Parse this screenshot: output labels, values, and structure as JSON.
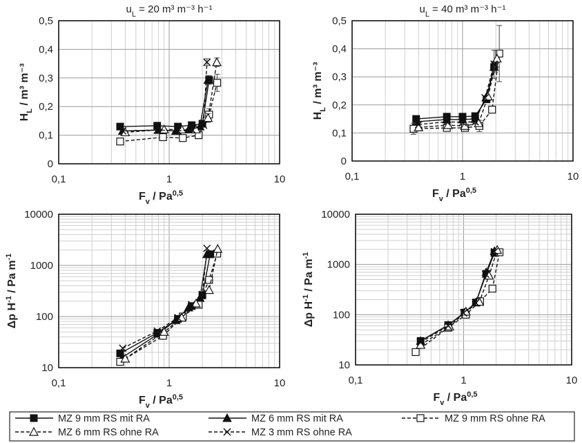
{
  "series_styles": [
    {
      "marker": "square-filled",
      "dash": "solid"
    },
    {
      "marker": "triangle-filled",
      "dash": "solid"
    },
    {
      "marker": "square-open",
      "dash": "dashed"
    },
    {
      "marker": "triangle-open",
      "dash": "dashed"
    },
    {
      "marker": "x",
      "dash": "dashed"
    }
  ],
  "chart_data": [
    {
      "type": "scatter",
      "panel": "top-left",
      "title": {
        "main": "u",
        "sub": "L",
        "rest": " = 20 m³ m⁻³ h⁻¹"
      },
      "xlabel": {
        "main": "F",
        "sub": "v",
        "rest": " / Pa",
        "sup": "0,5"
      },
      "ylabel": {
        "main": "H",
        "sub": "L",
        "rest": " / m³ m⁻³"
      },
      "xscale": "log",
      "xlim": [
        0.1,
        10
      ],
      "xticks": [
        "0,1",
        "1",
        "10"
      ],
      "yscale": "linear",
      "ylim": [
        0,
        0.5
      ],
      "yticks": [
        "0",
        "0,1",
        "0,2",
        "0,3",
        "0,4",
        "0,5"
      ],
      "series": [
        {
          "name": "MZ 9 mm RS mit RA",
          "x": [
            0.36,
            0.78,
            1.2,
            1.6,
            2.0,
            2.3
          ],
          "y": [
            0.13,
            0.133,
            0.13,
            0.135,
            0.14,
            0.293
          ],
          "err": [
            0,
            0,
            0,
            0,
            0,
            0.015
          ]
        },
        {
          "name": "MZ 6 mm RS mit RA",
          "x": [
            0.38,
            0.8,
            1.15,
            1.5,
            1.9,
            2.25
          ],
          "y": [
            0.115,
            0.118,
            0.115,
            0.12,
            0.13,
            0.293
          ],
          "err": [
            0,
            0,
            0,
            0,
            0,
            0.015
          ]
        },
        {
          "name": "MZ 9 mm RS ohne RA",
          "x": [
            0.36,
            0.88,
            1.33,
            1.85,
            2.3,
            2.72
          ],
          "y": [
            0.078,
            0.093,
            0.09,
            0.1,
            0.172,
            0.283
          ],
          "err": [
            0,
            0,
            0,
            0,
            0.02,
            0.03
          ]
        },
        {
          "name": "MZ 6 mm RS ohne RA",
          "x": [
            0.4,
            0.9,
            1.3,
            1.75,
            2.25,
            2.7
          ],
          "y": [
            0.11,
            0.12,
            0.12,
            0.12,
            0.16,
            0.355
          ],
          "err": [
            0,
            0,
            0,
            0,
            0.015,
            0.015
          ]
        },
        {
          "name": "MZ 3 mm RS ohne RA",
          "x": [
            0.38,
            0.78,
            1.2,
            1.6,
            2.05,
            2.2
          ],
          "y": [
            0.115,
            0.118,
            0.115,
            0.12,
            0.135,
            0.355
          ],
          "err": [
            0,
            0,
            0,
            0,
            0,
            0.012
          ]
        }
      ]
    },
    {
      "type": "scatter",
      "panel": "top-right",
      "title": {
        "main": "u",
        "sub": "L",
        "rest": " = 40 m³ m⁻³ h⁻¹"
      },
      "xlabel": {
        "main": "F",
        "sub": "v",
        "rest": " / Pa",
        "sup": "0,5"
      },
      "ylabel": {
        "main": "H",
        "sub": "L",
        "rest": " / m³ m⁻³"
      },
      "xscale": "log",
      "xlim": [
        0.1,
        10
      ],
      "xticks": [
        "0,1",
        "1",
        "10"
      ],
      "yscale": "linear",
      "ylim": [
        0,
        0.5
      ],
      "yticks": [
        "0",
        "0,1",
        "0,2",
        "0,3",
        "0,4",
        "0,5"
      ],
      "series": [
        {
          "name": "MZ 9 mm RS mit RA",
          "x": [
            0.38,
            0.72,
            1.0,
            1.3,
            1.65,
            1.93
          ],
          "y": [
            0.15,
            0.158,
            0.158,
            0.16,
            0.22,
            0.335
          ],
          "err": [
            0,
            0,
            0,
            0,
            0,
            0.015
          ]
        },
        {
          "name": "MZ 6 mm RS mit RA",
          "x": [
            0.38,
            0.72,
            1.0,
            1.3,
            1.65,
            1.93
          ],
          "y": [
            0.14,
            0.148,
            0.148,
            0.15,
            0.23,
            0.335
          ],
          "err": [
            0,
            0,
            0,
            0,
            0,
            0.02
          ]
        },
        {
          "name": "MZ 9 mm RS ohne RA",
          "x": [
            0.36,
            0.72,
            1.05,
            1.42,
            1.85,
            2.15
          ],
          "y": [
            0.115,
            0.118,
            0.118,
            0.125,
            0.183,
            0.383
          ],
          "err": [
            0.02,
            0,
            0.01,
            0.02,
            0,
            0.1
          ]
        },
        {
          "name": "MZ 6 mm RS ohne RA",
          "x": [
            0.4,
            0.74,
            1.05,
            1.4,
            1.7,
            2.05
          ],
          "y": [
            0.12,
            0.128,
            0.125,
            0.135,
            0.23,
            0.365
          ],
          "err": [
            0,
            0,
            0,
            0,
            0,
            0.03
          ]
        },
        {
          "name": "MZ 3 mm RS ohne RA",
          "x": [
            0.4,
            0.72,
            1.0,
            1.3,
            1.6,
            1.93
          ],
          "y": [
            0.13,
            0.14,
            0.138,
            0.14,
            0.225,
            0.345
          ],
          "err": [
            0,
            0,
            0,
            0,
            0,
            0.05
          ]
        }
      ]
    },
    {
      "type": "scatter",
      "panel": "bottom-left",
      "xlabel": {
        "main": "F",
        "sub": "v",
        "rest": " / Pa",
        "sup": "0,5"
      },
      "ylabel": {
        "main": "Δp H",
        "sup": "-1",
        "rest": " / Pa m",
        "sup2": "-1"
      },
      "xscale": "log",
      "xlim": [
        0.1,
        10
      ],
      "xticks": [
        "0,1",
        "1",
        "10"
      ],
      "yscale": "log",
      "ylim": [
        10,
        10000
      ],
      "yticks": [
        "10",
        "100",
        "1000",
        "10000"
      ],
      "series": [
        {
          "name": "MZ 9 mm RS mit RA",
          "x": [
            0.36,
            0.78,
            1.2,
            1.6,
            2.0,
            2.35
          ],
          "y": [
            19,
            48,
            90,
            160,
            260,
            1650
          ],
          "err": [
            0,
            0,
            0,
            0,
            0,
            0
          ]
        },
        {
          "name": "MZ 6 mm RS mit RA",
          "x": [
            0.38,
            0.8,
            1.15,
            1.5,
            1.9,
            2.2
          ],
          "y": [
            16,
            46,
            85,
            150,
            230,
            1650
          ],
          "err": [
            0,
            0,
            0,
            0,
            0,
            0
          ]
        },
        {
          "name": "MZ 9 mm RS ohne RA",
          "x": [
            0.36,
            0.88,
            1.33,
            1.85,
            2.3,
            2.72
          ],
          "y": [
            13,
            42,
            100,
            170,
            520,
            1700
          ],
          "err": [
            0,
            0,
            0,
            0,
            0,
            0
          ]
        },
        {
          "name": "MZ 6 mm RS ohne RA",
          "x": [
            0.4,
            0.9,
            1.3,
            1.75,
            2.3,
            2.75
          ],
          "y": [
            15,
            50,
            95,
            180,
            330,
            2100
          ],
          "err": [
            0,
            0,
            0,
            0,
            0,
            0
          ]
        },
        {
          "name": "MZ 3 mm RS ohne RA",
          "x": [
            0.38,
            0.78,
            1.2,
            1.6,
            2.0,
            2.2
          ],
          "y": [
            24,
            52,
            95,
            170,
            270,
            2150
          ],
          "err": [
            0,
            0,
            0,
            0,
            0,
            0
          ]
        }
      ]
    },
    {
      "type": "scatter",
      "panel": "bottom-right",
      "xlabel": {
        "main": "F",
        "sub": "v",
        "rest": " / Pa",
        "sup": "0,5"
      },
      "ylabel": {
        "main": "Δp H",
        "sup": "-1",
        "rest": " / Pa m",
        "sup2": "-1"
      },
      "xscale": "log",
      "xlim": [
        0.1,
        10
      ],
      "xticks": [
        "0,1",
        "1",
        "10"
      ],
      "yscale": "log",
      "ylim": [
        10,
        10000
      ],
      "yticks": [
        "10",
        "100",
        "1000",
        "10000"
      ],
      "series": [
        {
          "name": "MZ 9 mm RS mit RA",
          "x": [
            0.4,
            0.72,
            1.02,
            1.3,
            1.62,
            1.93
          ],
          "y": [
            30,
            62,
            110,
            175,
            650,
            1700
          ],
          "err": [
            0,
            0,
            0,
            0,
            0,
            0
          ]
        },
        {
          "name": "MZ 6 mm RS mit RA",
          "x": [
            0.4,
            0.72,
            1.02,
            1.3,
            1.62,
            1.93
          ],
          "y": [
            30,
            62,
            110,
            175,
            700,
            1850
          ],
          "err": [
            0,
            0,
            0,
            0,
            0,
            0
          ]
        },
        {
          "name": "MZ 9 mm RS ohne RA",
          "x": [
            0.36,
            0.72,
            1.05,
            1.42,
            1.85,
            2.15
          ],
          "y": [
            18,
            55,
            100,
            185,
            330,
            1750
          ],
          "err": [
            0,
            0,
            0,
            0,
            0,
            0
          ]
        },
        {
          "name": "MZ 6 mm RS ohne RA",
          "x": [
            0.4,
            0.74,
            1.05,
            1.4,
            1.72,
            2.05
          ],
          "y": [
            25,
            58,
            115,
            180,
            600,
            1950
          ],
          "err": [
            0,
            0,
            0,
            0,
            0,
            0
          ]
        },
        {
          "name": "MZ 3 mm RS ohne RA",
          "x": [
            0.4,
            0.72,
            1.0,
            1.3,
            1.6,
            1.93
          ],
          "y": [
            28,
            60,
            108,
            172,
            640,
            1800
          ],
          "err": [
            0,
            0,
            0,
            0,
            0,
            0
          ]
        }
      ]
    }
  ],
  "legend": {
    "items": [
      "MZ 9 mm RS mit RA",
      "MZ 6 mm RS mit RA",
      "MZ 9 mm RS ohne RA",
      "MZ 6 mm RS ohne RA",
      "MZ 3 mm RS ohne RA"
    ]
  }
}
